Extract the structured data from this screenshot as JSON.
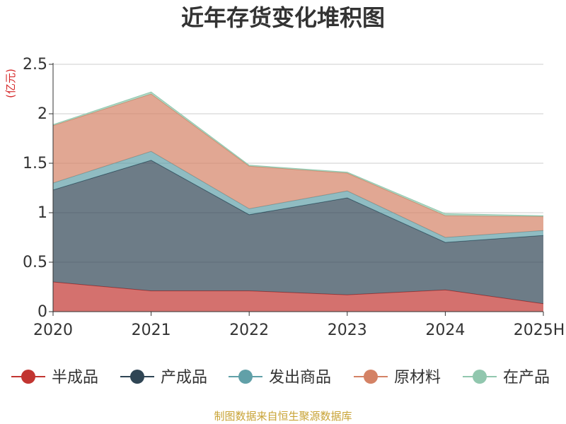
{
  "chart_data": {
    "type": "area",
    "stacked": true,
    "title": "近年存货变化堆积图",
    "ylabel": "(亿元)",
    "categories": [
      "2020",
      "2021",
      "2022",
      "2023",
      "2024",
      "2025H"
    ],
    "ylim": [
      0,
      2.5
    ],
    "yticks": [
      0,
      0.5,
      1,
      1.5,
      2,
      2.5
    ],
    "ytick_labels": [
      "0",
      "0.5",
      "1",
      "1.5",
      "2",
      "2.5"
    ],
    "grid": true,
    "legend_position": "bottom",
    "series": [
      {
        "name": "半成品",
        "color": "#c23531",
        "values": [
          0.3,
          0.21,
          0.21,
          0.17,
          0.22,
          0.08
        ]
      },
      {
        "name": "产成品",
        "color": "#2f4554",
        "values": [
          0.93,
          1.32,
          0.77,
          0.98,
          0.48,
          0.69
        ]
      },
      {
        "name": "发出商品",
        "color": "#61a0a8",
        "values": [
          0.07,
          0.09,
          0.06,
          0.07,
          0.05,
          0.05
        ]
      },
      {
        "name": "原材料",
        "color": "#d48265",
        "values": [
          0.58,
          0.58,
          0.43,
          0.18,
          0.22,
          0.14
        ]
      },
      {
        "name": "在产品",
        "color": "#91c7ae",
        "values": [
          0.01,
          0.02,
          0.01,
          0.01,
          0.02,
          0.01
        ]
      }
    ],
    "source": "制图数据来自恒生聚源数据库"
  }
}
